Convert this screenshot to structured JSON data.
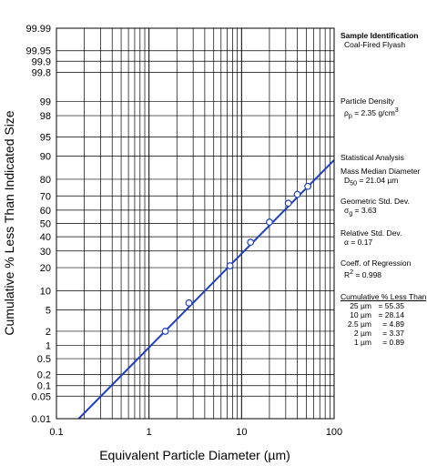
{
  "chart_data": {
    "type": "scatter",
    "title": "",
    "xlabel": "Equivalent Particle Diameter (µm)",
    "ylabel": "Cumulative % Less Than Indicated Size",
    "x_scale": "log",
    "y_scale": "probability",
    "xlim": [
      0.1,
      100
    ],
    "ylim": [
      0.01,
      99.99
    ],
    "x_ticks": [
      "0.1",
      "1",
      "10",
      "100"
    ],
    "y_ticks": [
      "0.01",
      "0.05",
      "0.1",
      "0.2",
      "0.5",
      "1",
      "2",
      "5",
      "10",
      "20",
      "30",
      "40",
      "50",
      "60",
      "70",
      "80",
      "90",
      "95",
      "98",
      "99",
      "99.8",
      "99.9",
      "99.95",
      "99.99"
    ],
    "grid": true,
    "series": [
      {
        "name": "",
        "type": "scatter",
        "marker": "open-circle",
        "x": [
          1.5,
          2.7,
          7.5,
          12.5,
          20,
          32,
          40,
          52
        ],
        "y": [
          2.0,
          6.5,
          21,
          36,
          51,
          65,
          71,
          76
        ]
      },
      {
        "name": "",
        "type": "line",
        "color": "#1f3fbf",
        "median": 21.04,
        "geometric_std": 3.63
      }
    ],
    "colors": {
      "fit_line": "#1f3fbf",
      "grid": "#000000",
      "markers": "#1f3fbf"
    }
  },
  "panel": {
    "sample_heading": "Sample Identification",
    "sample_name": "Coal-Fired Flyash",
    "density_heading": "Particle Density",
    "density_symbol": "ρ",
    "density_sub": "p",
    "density_value": " = 2.35 g/cm",
    "density_sup": "3",
    "stats_heading": "Statistical Analysis",
    "mmd_heading": "Mass Median Diameter",
    "mmd_symbol": "D",
    "mmd_sub": "50",
    "mmd_value": " = 21.04 µm",
    "gsd_heading": "Geometric Std. Dev.",
    "gsd_symbol": "σ",
    "gsd_sub": "g",
    "gsd_value": " = 3.63",
    "rsd_heading": "Relative Std. Dev.",
    "rsd_value": "α = 0.17",
    "reg_heading": "Coeff. of Regression",
    "reg_symbol": "R",
    "reg_sup": "2",
    "reg_value": " = 0.998",
    "cum_heading": "Cumulative % Less Than",
    "cum_rows": [
      {
        "size": "25 µm",
        "value": "= 55.35"
      },
      {
        "size": "10 µm",
        "value": "= 28.14"
      },
      {
        "size": "2.5 µm",
        "value": "=  4.89"
      },
      {
        "size": "2 µm",
        "value": "=  3.37"
      },
      {
        "size": "1 µm",
        "value": "=  0.89"
      }
    ]
  }
}
